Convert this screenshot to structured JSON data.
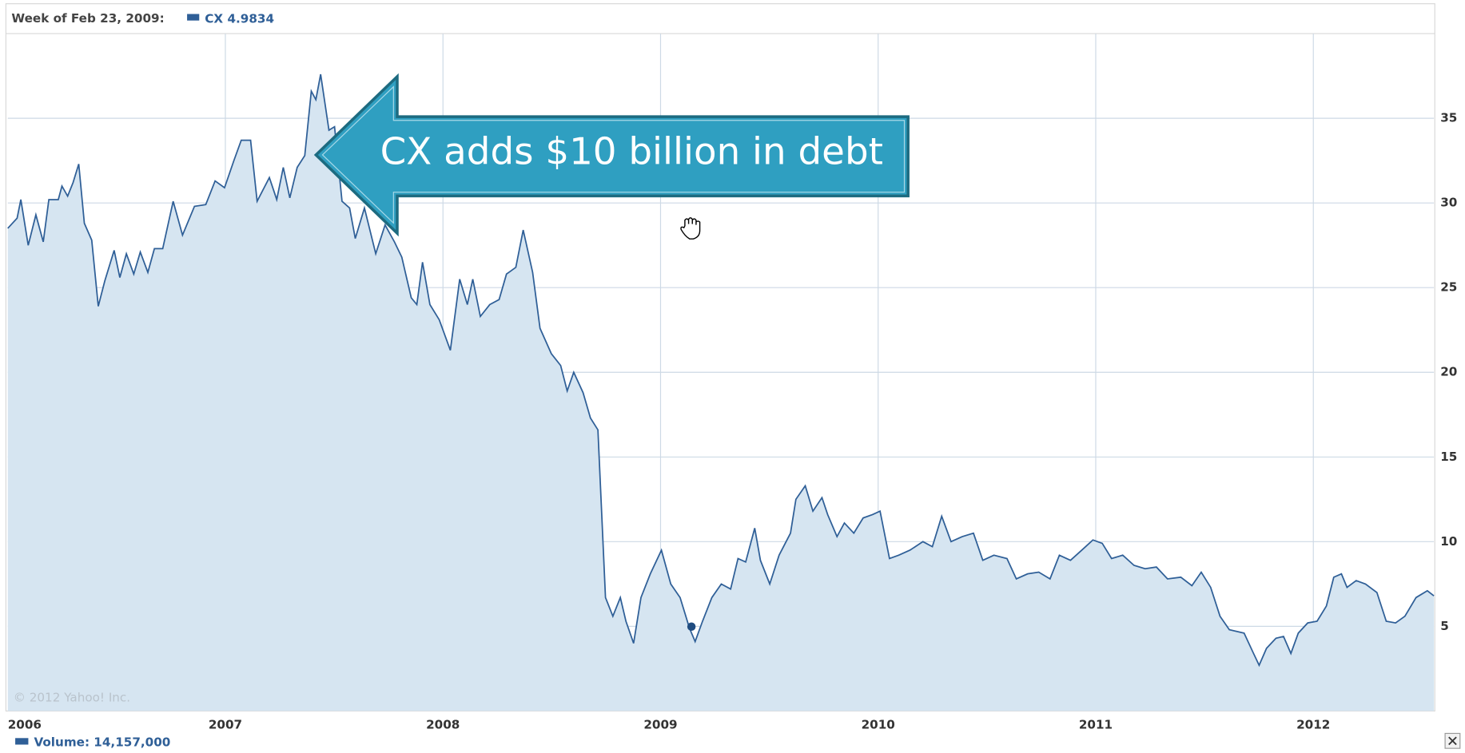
{
  "chart_data": {
    "type": "area",
    "header": "Week of Feb 23, 2009:",
    "hover": {
      "name": "CX",
      "value": 4.9834,
      "x": 2009.142
    },
    "annotation": "CX adds $10 billion in debt",
    "copyright": "© 2012 Yahoo! Inc.",
    "volume_label": "Volume: 14,157,000",
    "xlim": [
      2006,
      2012.554
    ],
    "xticks": [
      2006,
      2007,
      2008,
      2009,
      2010,
      2011,
      2012
    ],
    "ylim": [
      0,
      40
    ],
    "yticks": [
      5,
      10,
      15,
      20,
      25,
      30,
      35
    ],
    "grid": true,
    "x": [
      2006.0,
      2006.043,
      2006.06,
      2006.094,
      2006.129,
      2006.163,
      2006.189,
      2006.232,
      2006.249,
      2006.275,
      2006.3,
      2006.326,
      2006.352,
      2006.386,
      2006.416,
      2006.446,
      2006.489,
      2006.515,
      2006.545,
      2006.579,
      2006.609,
      2006.644,
      2006.674,
      2006.712,
      2006.76,
      2006.803,
      2006.858,
      2006.91,
      2006.953,
      2006.996,
      2007.039,
      2007.073,
      2007.116,
      2007.146,
      2007.202,
      2007.236,
      2007.266,
      2007.296,
      2007.33,
      2007.365,
      2007.395,
      2007.416,
      2007.438,
      2007.476,
      2007.502,
      2007.536,
      2007.571,
      2007.597,
      2007.639,
      2007.691,
      2007.734,
      2007.777,
      2007.811,
      2007.854,
      2007.88,
      2007.906,
      2007.94,
      2007.983,
      2008.034,
      2008.077,
      2008.112,
      2008.137,
      2008.172,
      2008.215,
      2008.258,
      2008.292,
      2008.335,
      2008.369,
      2008.412,
      2008.446,
      2008.498,
      2008.541,
      2008.571,
      2008.601,
      2008.644,
      2008.678,
      2008.712,
      2008.747,
      2008.781,
      2008.815,
      2008.841,
      2008.876,
      2008.91,
      2008.953,
      2009.004,
      2009.047,
      2009.09,
      2009.133,
      2009.159,
      2009.193,
      2009.236,
      2009.279,
      2009.322,
      2009.356,
      2009.391,
      2009.433,
      2009.459,
      2009.502,
      2009.545,
      2009.597,
      2009.622,
      2009.665,
      2009.7,
      2009.742,
      2009.768,
      2009.811,
      2009.845,
      2009.888,
      2009.931,
      2009.974,
      2010.009,
      2010.052,
      2010.094,
      2010.146,
      2010.206,
      2010.249,
      2010.292,
      2010.335,
      2010.386,
      2010.438,
      2010.481,
      2010.532,
      2010.592,
      2010.635,
      2010.687,
      2010.738,
      2010.79,
      2010.833,
      2010.884,
      2010.936,
      2010.987,
      2011.03,
      2011.073,
      2011.124,
      2011.176,
      2011.227,
      2011.279,
      2011.33,
      2011.391,
      2011.442,
      2011.485,
      2011.528,
      2011.571,
      2011.614,
      2011.682,
      2011.725,
      2011.751,
      2011.785,
      2011.828,
      2011.863,
      2011.897,
      2011.931,
      2011.974,
      2012.017,
      2012.06,
      2012.094,
      2012.129,
      2012.155,
      2012.197,
      2012.24,
      2012.292,
      2012.335,
      2012.378,
      2012.421,
      2012.472,
      2012.524,
      2012.554
    ],
    "series": [
      {
        "name": "CX",
        "color": "#2f5f97",
        "fill": "#d6e5f1",
        "values": [
          28.5,
          29.1,
          30.2,
          27.5,
          29.3,
          27.7,
          30.2,
          30.2,
          31.0,
          30.4,
          31.2,
          32.3,
          28.8,
          27.8,
          23.9,
          25.4,
          27.2,
          25.6,
          27.0,
          25.8,
          27.1,
          25.9,
          27.3,
          27.3,
          30.1,
          28.1,
          29.8,
          29.9,
          31.3,
          30.9,
          32.5,
          33.7,
          33.7,
          30.1,
          31.5,
          30.2,
          32.1,
          30.3,
          32.1,
          32.8,
          36.6,
          36.1,
          37.6,
          34.3,
          34.5,
          30.1,
          29.7,
          27.9,
          29.7,
          27.0,
          28.7,
          27.7,
          26.8,
          24.4,
          24.0,
          26.5,
          24.0,
          23.1,
          21.3,
          25.5,
          24.0,
          25.5,
          23.3,
          24.0,
          24.3,
          25.8,
          26.2,
          28.4,
          25.9,
          22.6,
          21.1,
          20.4,
          18.9,
          20.0,
          18.8,
          17.3,
          16.6,
          6.7,
          5.6,
          6.7,
          5.3,
          4.0,
          6.7,
          8.1,
          9.5,
          7.5,
          6.7,
          4.9,
          4.1,
          5.3,
          6.7,
          7.5,
          7.2,
          9.0,
          8.8,
          10.8,
          8.9,
          7.5,
          9.2,
          10.5,
          12.5,
          13.3,
          11.8,
          12.6,
          11.6,
          10.3,
          11.1,
          10.5,
          11.4,
          11.6,
          11.8,
          9.0,
          9.2,
          9.5,
          10.0,
          9.7,
          11.5,
          10.0,
          10.3,
          10.5,
          8.9,
          9.2,
          9.0,
          7.8,
          8.1,
          8.2,
          7.8,
          9.2,
          8.9,
          9.5,
          10.1,
          9.9,
          9.0,
          9.2,
          8.6,
          8.4,
          8.5,
          7.8,
          7.9,
          7.4,
          8.2,
          7.3,
          5.6,
          4.8,
          4.6,
          3.4,
          2.7,
          3.7,
          4.3,
          4.4,
          3.4,
          4.6,
          5.2,
          5.3,
          6.2,
          7.9,
          8.1,
          7.3,
          7.7,
          7.5,
          7.0,
          5.3,
          5.2,
          5.6,
          6.7,
          7.1,
          6.8
        ]
      }
    ]
  }
}
